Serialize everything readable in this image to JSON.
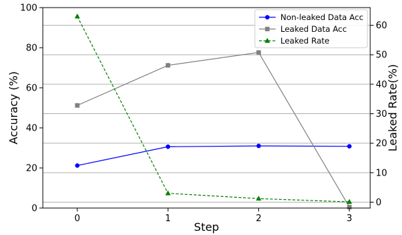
{
  "chart_data": {
    "type": "line",
    "title": "",
    "xlabel": "Step",
    "ylabel_left": "Accuracy (%)",
    "ylabel_right": "Leaked Rate(%)",
    "x": [
      0,
      1,
      2,
      3
    ],
    "x_ticks": [
      "0",
      "1",
      "2",
      "3"
    ],
    "y_left_range": [
      0,
      100
    ],
    "y_left_ticks": [
      "0",
      "20",
      "40",
      "60",
      "80",
      "100"
    ],
    "y_right_range": [
      -2,
      66
    ],
    "y_right_ticks": [
      "0",
      "10",
      "20",
      "30",
      "40",
      "50",
      "60"
    ],
    "grid": "horizontal lines at right-axis ticks",
    "legend_position": "top-right",
    "series": [
      {
        "name": "Non-leaked Data Acc",
        "axis": "left",
        "values": [
          21.2,
          30.6,
          31.0,
          30.8
        ],
        "color": "#0000ff",
        "marker": "circle",
        "line_style": "solid"
      },
      {
        "name": "Leaked Data Acc",
        "axis": "left",
        "values": [
          51.2,
          71.2,
          77.6,
          0.5
        ],
        "color": "#808080",
        "marker": "square",
        "line_style": "solid"
      },
      {
        "name": "Leaked Rate",
        "axis": "right",
        "values": [
          63.0,
          3.0,
          1.2,
          0.1
        ],
        "color": "#008000",
        "marker": "triangle",
        "line_style": "dashed"
      }
    ]
  }
}
